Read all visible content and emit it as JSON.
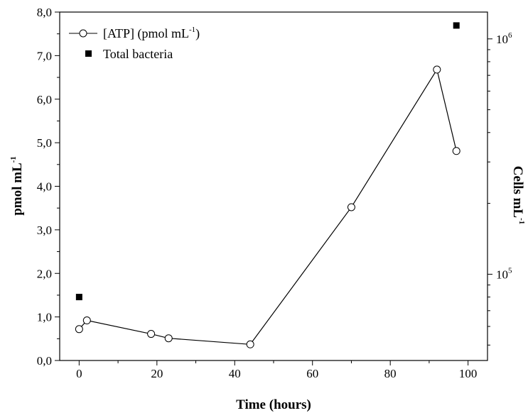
{
  "chart_data": {
    "type": "line",
    "title": "",
    "xlabel": "Time (hours)",
    "ylabel_left": "pmol mL",
    "ylabel_left_sup": "-1",
    "ylabel_right": "Cells mL",
    "ylabel_right_sup": "-1",
    "xlim": [
      -5,
      105
    ],
    "ylim_left": [
      0,
      8
    ],
    "ylim_right": [
      43000,
      1300000
    ],
    "right_axis_scale": "log",
    "x_ticks": [
      0,
      20,
      40,
      60,
      80,
      100
    ],
    "x_tick_labels": [
      "0",
      "20",
      "40",
      "60",
      "80",
      "100"
    ],
    "y_left_ticks": [
      0,
      1,
      2,
      3,
      4,
      5,
      6,
      7,
      8
    ],
    "y_left_tick_labels": [
      "0,0",
      "1,0",
      "2,0",
      "3,0",
      "4,0",
      "5,0",
      "6,0",
      "7,0",
      "8,0"
    ],
    "y_right_ticks": [
      100000,
      1000000
    ],
    "y_right_tick_base": "10",
    "y_right_tick_exponents": [
      "5",
      "6"
    ],
    "grid": false,
    "legend_position": "top-left",
    "series": [
      {
        "name": "[ATP] (pmol mL",
        "name_sup": "-1",
        "name_suffix": ")",
        "axis": "left",
        "marker": "open-circle",
        "line": true,
        "x": [
          0,
          2,
          18.5,
          23,
          44,
          70,
          92,
          97
        ],
        "y": [
          0.72,
          0.92,
          0.61,
          0.51,
          0.37,
          3.52,
          6.68,
          4.81
        ]
      },
      {
        "name": "Total bacteria",
        "axis": "right",
        "marker": "filled-square",
        "line": false,
        "x": [
          0,
          97
        ],
        "y": [
          80000,
          1140000
        ]
      }
    ]
  }
}
